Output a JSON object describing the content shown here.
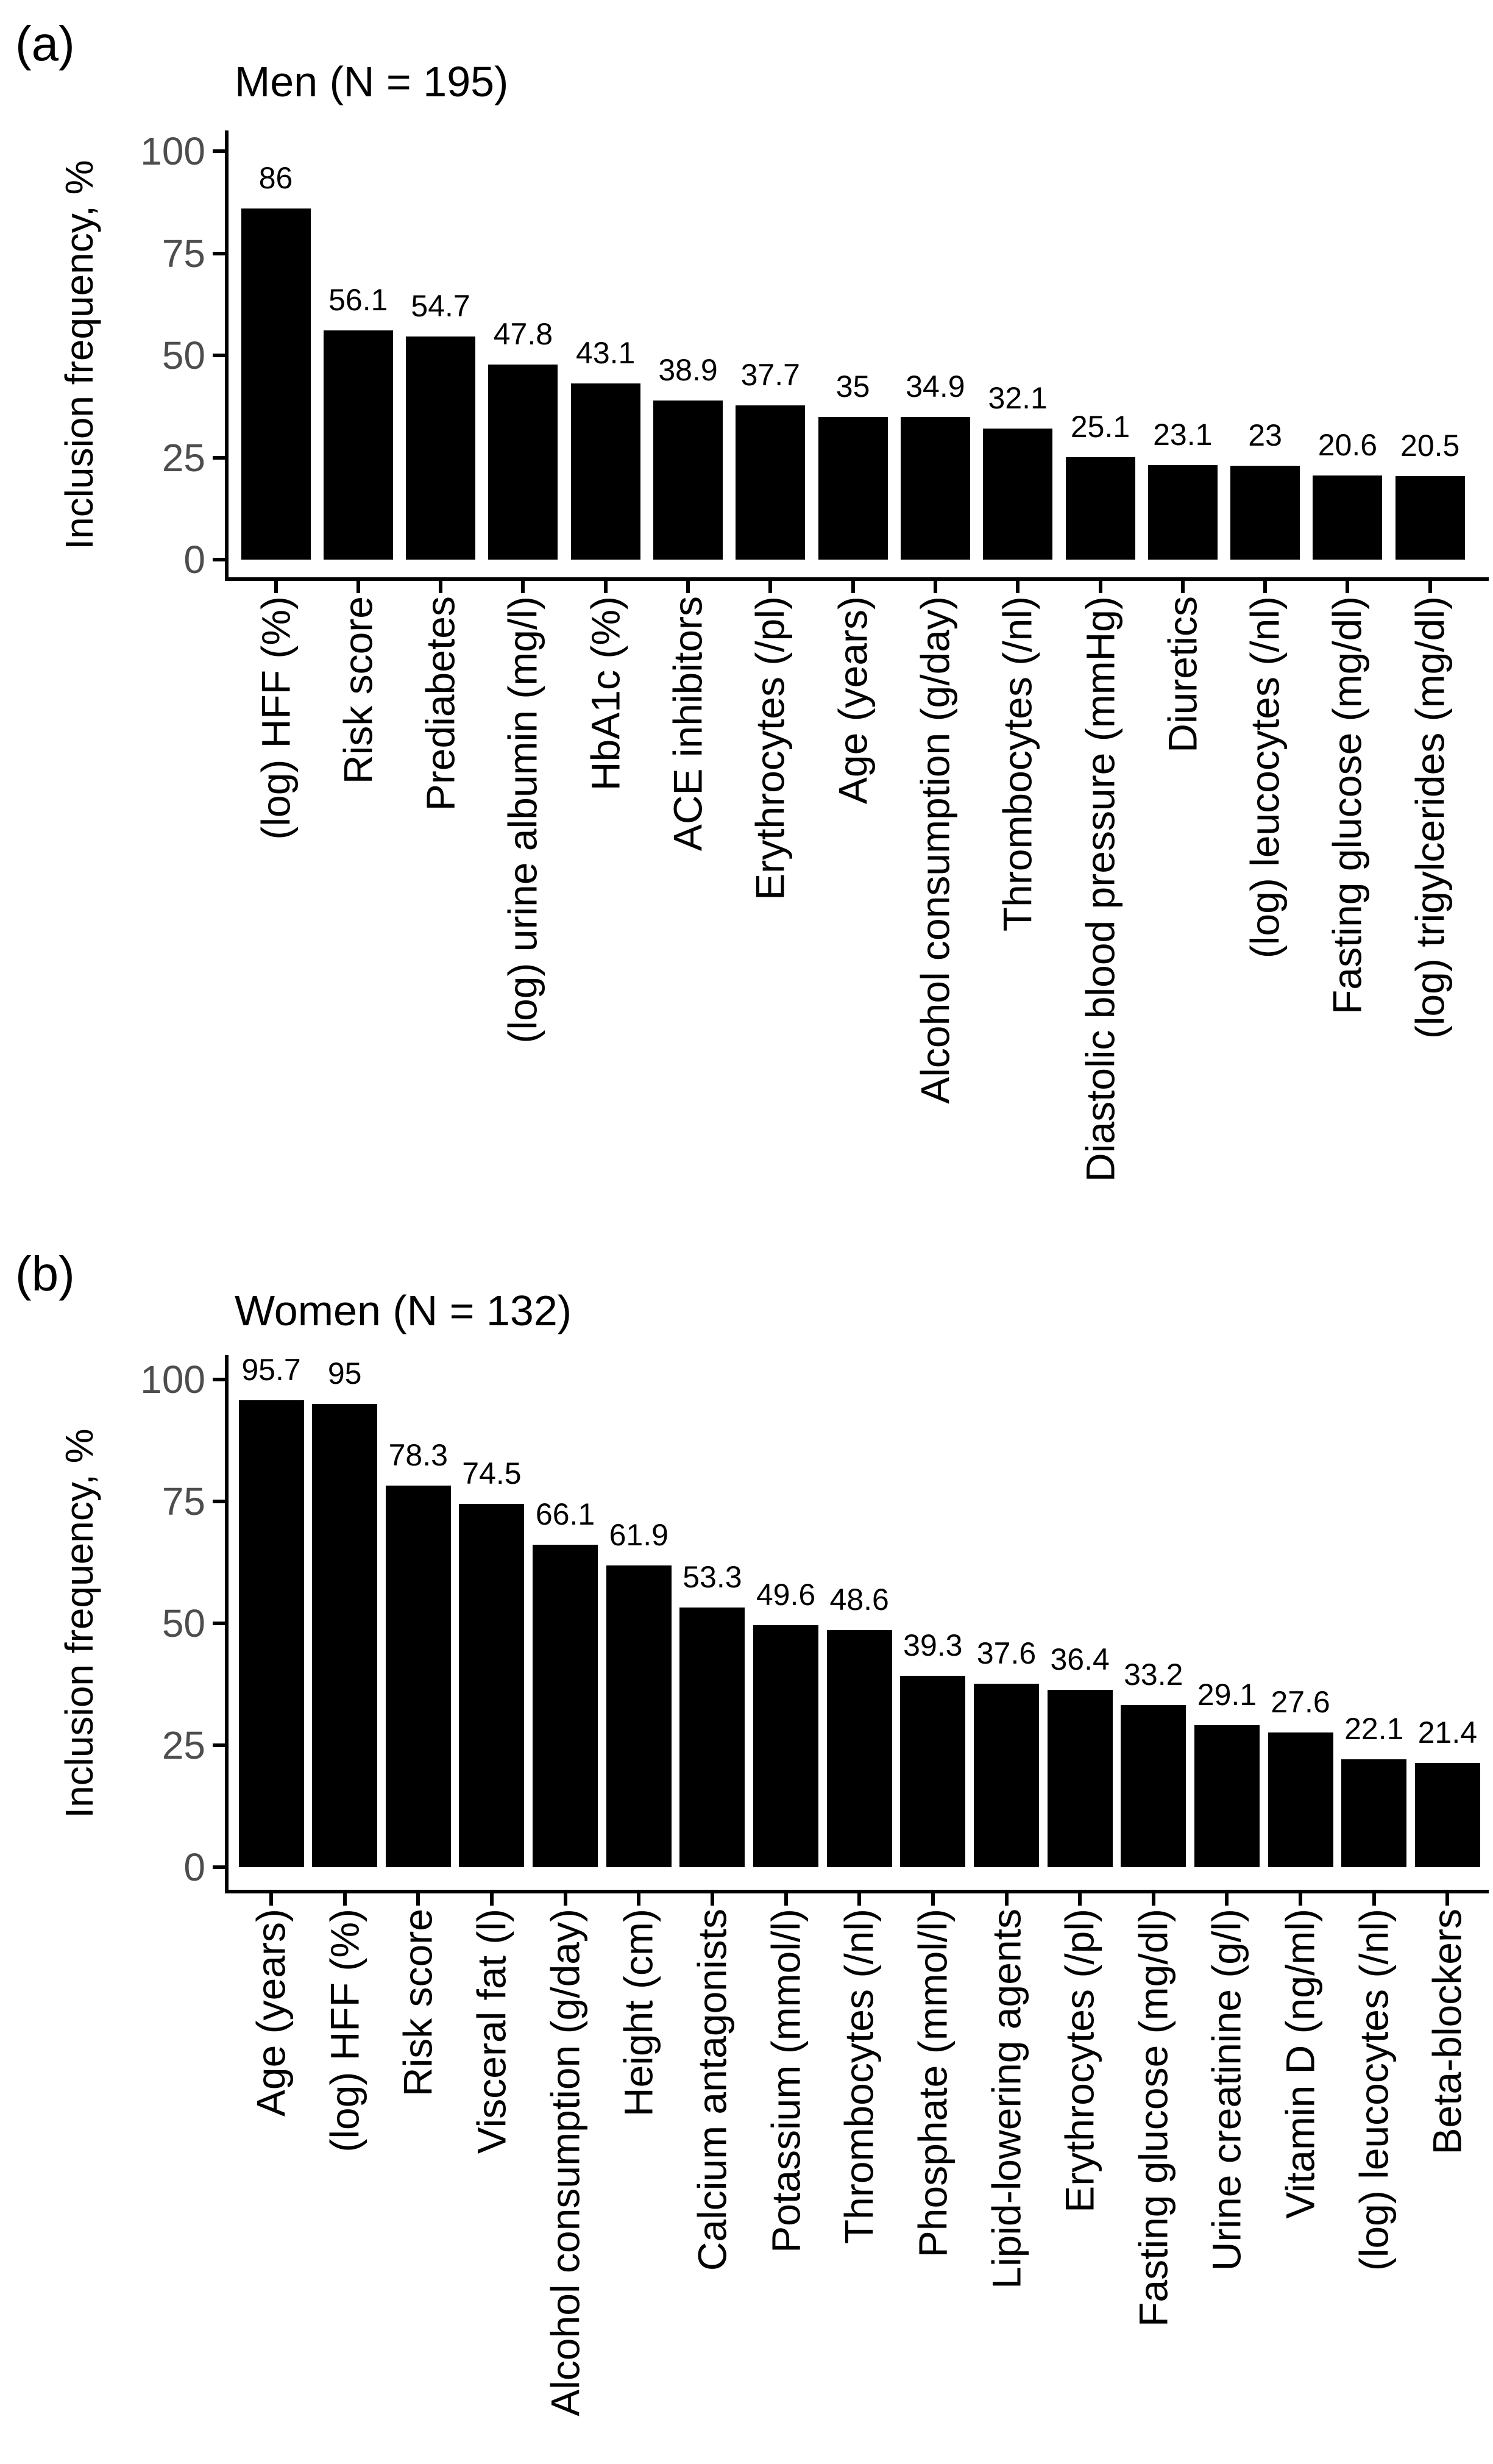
{
  "figure": {
    "background": "#ffffff",
    "bar_color": "#000000",
    "axis_color": "#000000",
    "tick_label_color": "#4d4d4d"
  },
  "chart_data": [
    {
      "panel_label": "(a)",
      "type": "bar",
      "title": "Men (N = 195)",
      "xlabel": "",
      "ylabel": "Inclusion frequency, %",
      "ylim": [
        0,
        105
      ],
      "yticks": [
        0,
        25,
        50,
        75,
        100
      ],
      "grid": false,
      "legend": "none",
      "bar_color": "#000000",
      "value_labels": true,
      "categories": [
        "(log) HFF (%)",
        "Risk score",
        "Prediabetes",
        "(log) urine albumin (mg/l)",
        "HbA1c (%)",
        "ACE inhibitors",
        "Erythrocytes (/pl)",
        "Age (years)",
        "Alcohol consumption (g/day)",
        "Thrombocytes (/nl)",
        "Diastolic blood pressure (mmHg)",
        "Diuretics",
        "(log) leucocytes (/nl)",
        "Fasting glucose (mg/dl)",
        "(log) trigylcerides (mg/dl)"
      ],
      "values": [
        86,
        56.1,
        54.7,
        47.8,
        43.1,
        38.9,
        37.7,
        35,
        34.9,
        32.1,
        25.1,
        23.1,
        23,
        20.6,
        20.5
      ]
    },
    {
      "panel_label": "(b)",
      "type": "bar",
      "title": "Women (N = 132)",
      "xlabel": "",
      "ylabel": "Inclusion frequency, %",
      "ylim": [
        0,
        105
      ],
      "yticks": [
        0,
        25,
        50,
        75,
        100
      ],
      "grid": false,
      "legend": "none",
      "bar_color": "#000000",
      "value_labels": true,
      "categories": [
        "Age (years)",
        "(log) HFF (%)",
        "Risk score",
        "Visceral fat (l)",
        "Alcohol consumption (g/day)",
        "Height (cm)",
        "Calcium antagonists",
        "Potassium (mmol/l)",
        "Thrombocytes (/nl)",
        "Phosphate (mmol/l)",
        "Lipid-lowering agents",
        "Erythrocytes (/pl)",
        "Fasting glucose (mg/dl)",
        "Urine creatinine (g/l)",
        "Vitamin D (ng/ml)",
        "(log) leucocytes (/nl)",
        "Beta-blockers"
      ],
      "values": [
        95.7,
        95,
        78.3,
        74.5,
        66.1,
        61.9,
        53.3,
        49.6,
        48.6,
        39.3,
        37.6,
        36.4,
        33.2,
        29.1,
        27.6,
        22.1,
        21.4
      ]
    }
  ]
}
